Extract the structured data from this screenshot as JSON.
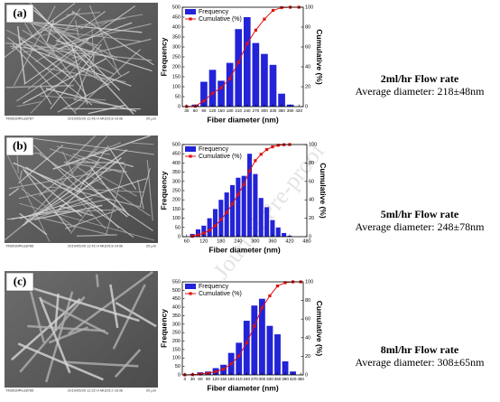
{
  "watermark": "Journal Pre-proof",
  "panels": [
    {
      "label": "(a)",
      "title": "2ml/hr Flow rate",
      "subtitle": "Average diameter: 218±48nm",
      "sem": [
        "TM3030Plus8787",
        "2019/05/29 11:46 H MUD5.8 x4.0k",
        "20 µm"
      ]
    },
    {
      "label": "(b)",
      "title": "5ml/hr Flow rate",
      "subtitle": "Average diameter: 248±78nm",
      "sem": [
        "TM3030Plus8786",
        "2019/05/29 11:42 H MUD5.8 x4.0k",
        "20 µm"
      ]
    },
    {
      "label": "(c)",
      "title": "8ml/hr Flow rate",
      "subtitle": "Average diameter: 308±65nm",
      "sem": [
        "TM3030Plus8785",
        "2019/05/29 11:32 H MUD5.2 x5.0k",
        "20 µm"
      ]
    }
  ],
  "chart_data": [
    {
      "type": "bar",
      "x_label": "Fiber diameter (nm)",
      "y_label": "Frequency",
      "y2_label": "Cumulative (%)",
      "x": [
        30,
        60,
        90,
        120,
        150,
        180,
        210,
        240,
        270,
        300,
        330,
        360,
        390,
        420
      ],
      "series": [
        {
          "name": "Frequency",
          "color": "#2323d8",
          "values": [
            0,
            10,
            125,
            185,
            130,
            220,
            390,
            450,
            320,
            265,
            210,
            65,
            10,
            0
          ]
        },
        {
          "name": "Cumulative (%)",
          "color": "#e01010",
          "type": "line",
          "axis": "y2",
          "values": [
            0,
            0.4,
            5.7,
            13.4,
            18.9,
            28.2,
            44.5,
            63.4,
            76.9,
            88,
            96.8,
            99.6,
            100,
            100
          ]
        }
      ],
      "xlim": [
        15,
        435
      ],
      "xticks": [
        30,
        60,
        90,
        120,
        150,
        180,
        210,
        240,
        270,
        300,
        330,
        360,
        390,
        420
      ],
      "ylim": [
        0,
        500
      ],
      "yticks": [
        0,
        50,
        100,
        150,
        200,
        250,
        300,
        350,
        400,
        450,
        500
      ],
      "y2lim": [
        0,
        100
      ],
      "y2ticks": [
        0,
        20,
        40,
        60,
        80,
        100
      ],
      "legend": "top-left"
    },
    {
      "type": "bar",
      "x_label": "Fiber diameter (nm)",
      "y_label": "Frequency",
      "y2_label": "Cumulative (%)",
      "x": [
        80,
        100,
        120,
        140,
        160,
        180,
        200,
        220,
        240,
        260,
        280,
        300,
        320,
        340,
        360,
        380,
        400,
        420
      ],
      "series": [
        {
          "name": "Frequency",
          "color": "#2323d8",
          "values": [
            15,
            40,
            60,
            100,
            150,
            200,
            240,
            280,
            320,
            330,
            450,
            340,
            210,
            160,
            90,
            50,
            20,
            5
          ]
        },
        {
          "name": "Cumulative (%)",
          "color": "#e01010",
          "type": "line",
          "axis": "y2",
          "values": [
            0.5,
            1.8,
            3.8,
            7.0,
            11.9,
            18.5,
            26.3,
            35.5,
            45.9,
            56.7,
            71.4,
            82.5,
            89.4,
            94.6,
            97.5,
            99.2,
            99.8,
            100
          ]
        }
      ],
      "xlim": [
        45,
        480
      ],
      "xticks": [
        60,
        120,
        180,
        240,
        300,
        360,
        420,
        480
      ],
      "ylim": [
        0,
        500
      ],
      "yticks": [
        0,
        50,
        100,
        150,
        200,
        250,
        300,
        350,
        400,
        450,
        500
      ],
      "y2lim": [
        0,
        100
      ],
      "y2ticks": [
        0,
        20,
        40,
        60,
        80,
        100
      ],
      "legend": "top-left"
    },
    {
      "type": "bar",
      "x_label": "Fiber diameter (nm)",
      "y_label": "Frequency",
      "y2_label": "Cumulative (%)",
      "x": [
        0,
        30,
        60,
        90,
        120,
        150,
        180,
        210,
        240,
        270,
        300,
        330,
        360,
        390,
        420,
        450
      ],
      "series": [
        {
          "name": "Frequency",
          "color": "#2323d8",
          "values": [
            0,
            5,
            15,
            20,
            40,
            60,
            130,
            190,
            320,
            410,
            450,
            290,
            240,
            80,
            20,
            0
          ]
        },
        {
          "name": "Cumulative (%)",
          "color": "#e01010",
          "type": "line",
          "axis": "y2",
          "values": [
            0,
            0.2,
            0.9,
            1.8,
            3.5,
            6.2,
            11.9,
            20.3,
            34.4,
            52.4,
            72.2,
            85.0,
            95.6,
            99.1,
            100,
            100
          ]
        }
      ],
      "xlim": [
        -10,
        460
      ],
      "xticks": [
        0,
        30,
        60,
        90,
        120,
        150,
        180,
        210,
        240,
        270,
        300,
        330,
        360,
        390,
        420,
        450
      ],
      "ylim": [
        0,
        550
      ],
      "yticks": [
        0,
        50,
        100,
        150,
        200,
        250,
        300,
        350,
        400,
        450,
        500,
        550
      ],
      "y2lim": [
        0,
        100
      ],
      "y2ticks": [
        0,
        20,
        40,
        60,
        80,
        100
      ],
      "legend": "top-left"
    }
  ]
}
